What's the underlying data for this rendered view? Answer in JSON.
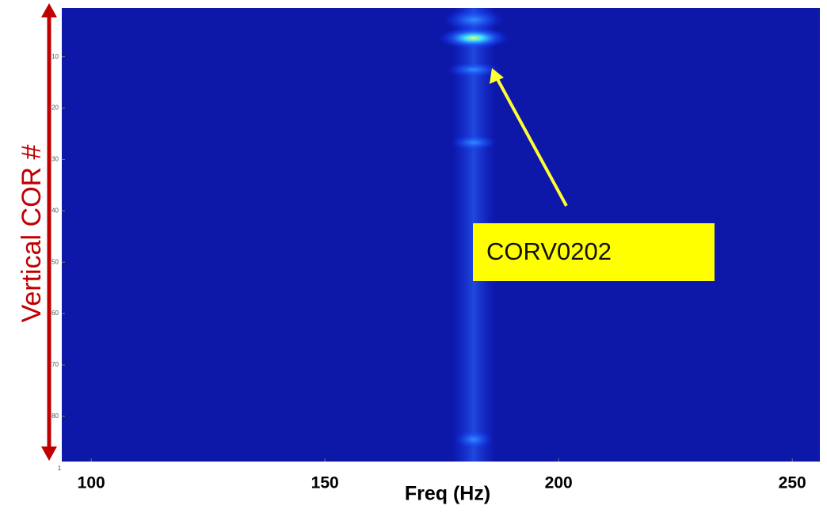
{
  "chart_data": {
    "type": "heatmap",
    "x_label": "Freq (Hz)",
    "y_label": "Vertical COR #",
    "xlim": [
      93.7,
      255.9
    ],
    "xticks": [
      100,
      150,
      200,
      250
    ],
    "ylim": [
      88.8,
      0.5
    ],
    "yticks": [
      10,
      20,
      30,
      40,
      50,
      60,
      70,
      80
    ],
    "corner_label": "1",
    "annotation": "CORV0202"
  }
}
